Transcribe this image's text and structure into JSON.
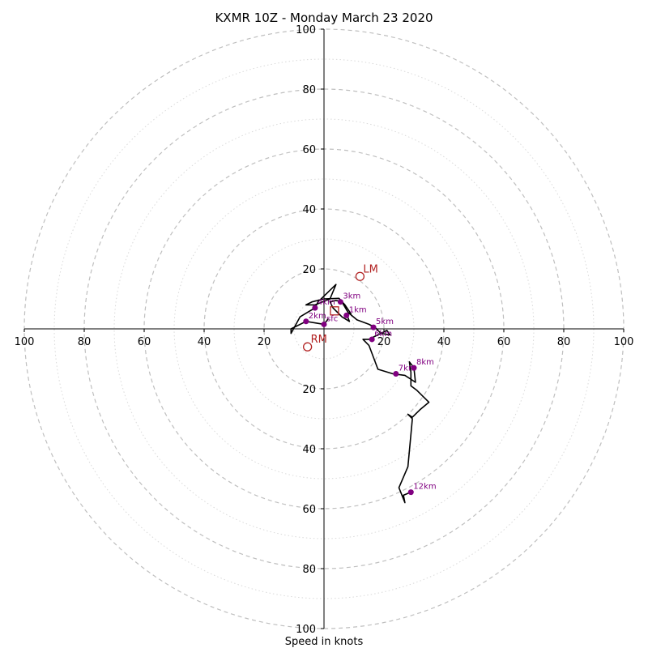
{
  "chart_data": {
    "type": "scatter",
    "title": "KXMR 10Z - Monday March 23 2020",
    "xlabel": "Speed in knots",
    "ylabel": "",
    "xlim": [
      -100,
      100
    ],
    "ylim": [
      -100,
      100
    ],
    "rings_major": [
      20,
      40,
      60,
      80,
      100
    ],
    "rings_minor": [
      10,
      30,
      50,
      70,
      90
    ],
    "ticks": {
      "x_left": [
        "100",
        "80",
        "60",
        "40",
        "20"
      ],
      "x_right": [
        "20",
        "40",
        "60",
        "80",
        "100"
      ],
      "y_top": [
        "100",
        "80",
        "60",
        "40",
        "20"
      ],
      "y_bottom": [
        "20",
        "40",
        "60",
        "80",
        "100"
      ]
    },
    "hodograph": {
      "color": "#000000",
      "points": [
        [
          1.5,
          3.5
        ],
        [
          0,
          1.5
        ],
        [
          -6,
          2.5
        ],
        [
          -11,
          0
        ],
        [
          -11,
          -1.5
        ],
        [
          -8,
          4
        ],
        [
          -3,
          7
        ],
        [
          -2,
          9
        ],
        [
          4,
          14.8
        ],
        [
          2,
          10
        ],
        [
          -3,
          8
        ],
        [
          -6,
          8
        ],
        [
          -4,
          9
        ],
        [
          0,
          10
        ],
        [
          5,
          10.2
        ],
        [
          7,
          8
        ],
        [
          9,
          5
        ],
        [
          7.5,
          5
        ],
        [
          8.5,
          2.5
        ],
        [
          6,
          4
        ],
        [
          3,
          7
        ],
        [
          2,
          9
        ],
        [
          4,
          9.5
        ],
        [
          6,
          9
        ],
        [
          8,
          5.5
        ],
        [
          11,
          3
        ],
        [
          15,
          1.5
        ],
        [
          17,
          0.5
        ],
        [
          19,
          -1.5
        ],
        [
          22,
          -2
        ],
        [
          21,
          -0.5
        ],
        [
          18,
          -2
        ],
        [
          15,
          -3.5
        ],
        [
          13,
          -3.5
        ],
        [
          15,
          -5.5
        ],
        [
          18,
          -13.5
        ],
        [
          23,
          -15
        ],
        [
          27,
          -15.5
        ],
        [
          30.5,
          -17.8
        ],
        [
          30,
          -13
        ],
        [
          28.5,
          -11
        ],
        [
          29,
          -14.5
        ],
        [
          29,
          -19
        ],
        [
          31,
          -20.5
        ],
        [
          35,
          -24.5
        ],
        [
          32,
          -27
        ],
        [
          29.5,
          -29.5
        ],
        [
          28,
          -28.5
        ],
        [
          29.5,
          -30
        ],
        [
          28,
          -46
        ],
        [
          25,
          -53
        ],
        [
          27,
          -58
        ],
        [
          26.5,
          -55.5
        ],
        [
          29,
          -54.5
        ]
      ]
    },
    "height_points": [
      {
        "label": "sfc",
        "u": 0,
        "v": 1.5
      },
      {
        "label": "1km",
        "u": 7.5,
        "v": 4.5
      },
      {
        "label": "2km",
        "u": -6,
        "v": 2.5
      },
      {
        "label": "3km",
        "u": 5.5,
        "v": 9
      },
      {
        "label": "4km",
        "u": -3,
        "v": 7
      },
      {
        "label": "5km",
        "u": 16.5,
        "v": 0.5
      },
      {
        "label": "6km",
        "u": 16,
        "v": -3.5
      },
      {
        "label": "7km",
        "u": 24,
        "v": -15
      },
      {
        "label": "8km",
        "u": 30,
        "v": -13
      },
      {
        "label": "12km",
        "u": 29,
        "v": -54.5
      }
    ],
    "storm_motion": [
      {
        "label": "LM",
        "u": 12,
        "v": 17.5,
        "marker": "circle"
      },
      {
        "label": "RM",
        "u": -5.5,
        "v": -6,
        "marker": "circle"
      },
      {
        "label": "",
        "u": 3.5,
        "v": 6,
        "marker": "square"
      }
    ],
    "colors": {
      "hodograph": "#000000",
      "height_points": "#800080",
      "storm_motion": "#b22222",
      "grid": "#bfbfbf"
    },
    "grid": true
  }
}
